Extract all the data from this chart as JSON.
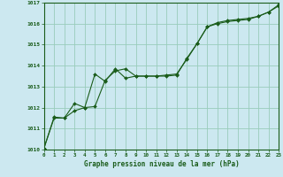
{
  "background_color": "#cce8f0",
  "plot_bg_color": "#cce8f0",
  "grid_color": "#99ccbb",
  "line_color": "#1a5c1a",
  "marker_color": "#1a5c1a",
  "xlabel": "Graphe pression niveau de la mer (hPa)",
  "ylim": [
    1010,
    1017
  ],
  "xlim": [
    0,
    23
  ],
  "yticks": [
    1010,
    1011,
    1012,
    1013,
    1014,
    1015,
    1016,
    1017
  ],
  "xticks": [
    0,
    1,
    2,
    3,
    4,
    5,
    6,
    7,
    8,
    9,
    10,
    11,
    12,
    13,
    14,
    15,
    16,
    17,
    18,
    19,
    20,
    21,
    22,
    23
  ],
  "series1_x": [
    0,
    1,
    2,
    3,
    4,
    5,
    6,
    7,
    8,
    9,
    10,
    11,
    12,
    13,
    14,
    15,
    16,
    17,
    18,
    19,
    20,
    21,
    22,
    23
  ],
  "series1_y": [
    1010.05,
    1011.55,
    1011.5,
    1011.85,
    1012.0,
    1012.05,
    1013.3,
    1013.75,
    1013.85,
    1013.5,
    1013.5,
    1013.5,
    1013.55,
    1013.6,
    1014.3,
    1015.05,
    1015.85,
    1016.0,
    1016.1,
    1016.15,
    1016.2,
    1016.35,
    1016.55,
    1016.9
  ],
  "series2_x": [
    0,
    1,
    2,
    3,
    4,
    5,
    6,
    7,
    8,
    9,
    10,
    11,
    12,
    13,
    14,
    15,
    16,
    17,
    18,
    19,
    20,
    21,
    22,
    23
  ],
  "series2_y": [
    1010.05,
    1011.5,
    1011.5,
    1012.2,
    1012.0,
    1013.6,
    1013.25,
    1013.85,
    1013.4,
    1013.5,
    1013.5,
    1013.5,
    1013.5,
    1013.55,
    1014.35,
    1015.05,
    1015.85,
    1016.05,
    1016.15,
    1016.2,
    1016.25,
    1016.35,
    1016.55,
    1016.85
  ]
}
